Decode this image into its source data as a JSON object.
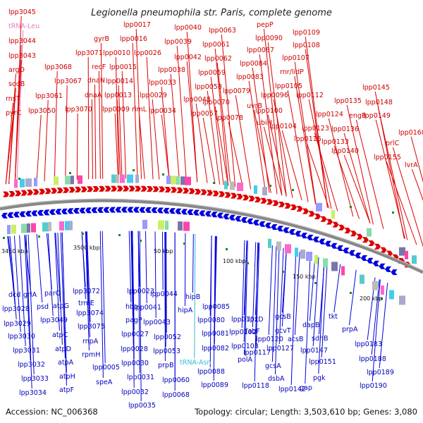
{
  "title": "Legionella pneumophila str. Paris, complete genome",
  "footer": {
    "accession": "Accession: NC_006368",
    "summary": "Topology: circular; Length: 3,503,610 bp; Genes: 3,080"
  },
  "colors": {
    "forward": "#dd0000",
    "reverse": "#0000dd",
    "backbone": "#888888",
    "trna_top": "#e080c0",
    "trna_bottom": "#33bbdd"
  },
  "scale_ticks": [
    "3450 kbp",
    "3500 kbp",
    "50 kbp",
    "100 kbp",
    "150 kbp",
    "200 kbp"
  ],
  "top_labels": [
    "lpp3045",
    "tRNA-Leu",
    "lpp3044",
    "lpp3043",
    "argD",
    "sodB",
    "rnsT",
    "pyrC",
    "lpp3050",
    "lpp3061",
    "lpp3068",
    "lpp3067",
    "lpp3070",
    "lpp3071",
    "gyrB",
    "dnaN",
    "recF",
    "dnaA",
    "lpp0009",
    "lpp0010",
    "lpp0013",
    "lpp0014",
    "lpp0015",
    "lpp0016",
    "lpp0017",
    "rimL",
    "lpp0026",
    "lpp0029",
    "lpp0033",
    "lpp0034",
    "lpp0038",
    "lpp0039",
    "lpp0040",
    "lpp0042",
    "lpp0048",
    "lpp0057",
    "lpp0058",
    "lpp0059",
    "lpp0061",
    "lpp0062",
    "lpp0063",
    "lpp0070",
    "lpp0078",
    "lpp0079",
    "lpp0083",
    "lpp0084",
    "lpp0087",
    "lpp0090",
    "pepP",
    "uvrB",
    "ubiH",
    "lpp0096",
    "lpp0100",
    "lpp0104",
    "lpp0105",
    "lpp0107",
    "lpp0108",
    "lpp0109",
    "rnr/lidP",
    "lpp0112",
    "lpp0115",
    "lpp0123",
    "lpp0124",
    "lpp0133",
    "lpp0135",
    "lpp0136",
    "engB",
    "lpp0140",
    "lpp0145",
    "lpp0148",
    "lpp0149",
    "lpp0155",
    "prlC",
    "lpp0160",
    "lvrA"
  ],
  "bottom_labels": [
    "dcd",
    "grlA",
    "lpp3028",
    "lpp3029",
    "lpp3030",
    "lpp3031",
    "lpp3032",
    "lpp3033",
    "lpp3034",
    "psd",
    "parC",
    "atpG",
    "lpp3049",
    "atpC",
    "atpD",
    "atpA",
    "atpH",
    "atpF",
    "lpp3072",
    "trmE",
    "lpp3074",
    "lpp3075",
    "rnpA",
    "rpmH",
    "lpp0005",
    "speA",
    "lpp0023",
    "hbp",
    "pagP",
    "lpp0027",
    "lpp0028",
    "lpp0030",
    "lpp0031",
    "lpp0032",
    "lpp0035",
    "lpp0041",
    "lpp0043",
    "lpp0044",
    "lpp0052",
    "lpp0053",
    "prpB",
    "lpp0060",
    "hipB",
    "hipA",
    "lpp0068",
    "lpp0080",
    "lpp0081",
    "lpp0082",
    "lpp0085",
    "tRNA-Asn",
    "lpp0088",
    "lpp0089",
    "lpp0101",
    "lpp0102",
    "lpp0103",
    "lpxD",
    "fabF",
    "lpp0117",
    "lpp0118",
    "lpp0120",
    "lpp0127",
    "polA",
    "gcsA",
    "dsbA",
    "lpp0142",
    "gcsB",
    "gcvT",
    "acsB",
    "dapB",
    "sdhB",
    "lpp0147",
    "lpp0151",
    "pgk",
    "gap",
    "tkt",
    "prpA",
    "lpp0183",
    "lpp0188",
    "lpp0189",
    "lpp0190"
  ]
}
